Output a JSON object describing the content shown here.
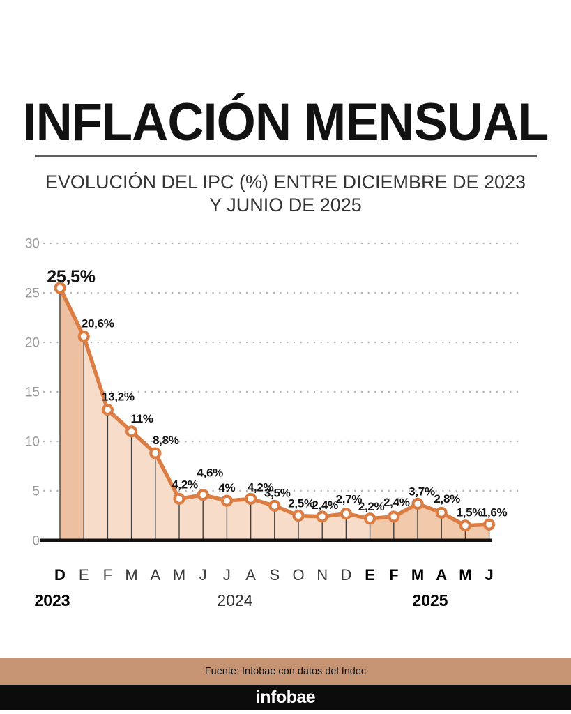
{
  "header": {
    "title": "INFLACIÓN MENSUAL",
    "subtitle_line1": "EVOLUCIÓN DEL IPC (%) ENTRE DICIEMBRE DE 2023",
    "subtitle_line2": "Y JUNIO DE 2025"
  },
  "chart_data": {
    "type": "area",
    "title": "INFLACIÓN MENSUAL",
    "subtitle": "EVOLUCIÓN DEL IPC (%) ENTRE DICIEMBRE DE 2023 Y JUNIO DE 2025",
    "x_months": [
      "D",
      "E",
      "F",
      "M",
      "A",
      "M",
      "J",
      "J",
      "A",
      "S",
      "O",
      "N",
      "D",
      "E",
      "F",
      "M",
      "A",
      "M",
      "J"
    ],
    "bold_month_indices": [
      0,
      13,
      14,
      15,
      16,
      17,
      18
    ],
    "values": [
      25.5,
      20.6,
      13.2,
      11,
      8.8,
      4.2,
      4.6,
      4,
      4.2,
      3.5,
      2.5,
      2.4,
      2.7,
      2.2,
      2.4,
      3.7,
      2.8,
      1.5,
      1.6
    ],
    "point_labels": [
      "25,5%",
      "20,6%",
      "13,2%",
      "11%",
      "8,8%",
      "4,2%",
      "4,6%",
      "4%",
      "4,2%",
      "3,5%",
      "2,5%",
      "2,4%",
      "2,7%",
      "2,2%",
      "2,4%",
      "3,7%",
      "2,8%",
      "1,5%",
      "1,6%"
    ],
    "y_ticks": [
      "0",
      "5",
      "10",
      "15",
      "20",
      "25",
      "30"
    ],
    "ylim": [
      0,
      30
    ],
    "grid": "dotted horizontal rows",
    "legend": "none",
    "year_labels": [
      {
        "label": "2023",
        "bold": true
      },
      {
        "label": "2024",
        "bold": false
      },
      {
        "label": "2025",
        "bold": true
      }
    ],
    "colors": {
      "line": "#dc7e44",
      "marker_fill": "#ffffff",
      "fill_dec2023": "#edc0a2",
      "fill_2024": "#f7dcca",
      "fill_2025": "#f1c9ab",
      "axis_text": "#9c9c9c",
      "grid_dot": "#b3b3b3",
      "drop_line": "#3f3f3f",
      "baseline": "#111111",
      "label_text": "#141414",
      "month_bold": "#000000",
      "month_regular": "#3a3a3a"
    },
    "fill_segments": [
      {
        "from": 0,
        "to": 1,
        "color_key": "fill_dec2023"
      },
      {
        "from": 1,
        "to": 13,
        "color_key": "fill_2024"
      },
      {
        "from": 13,
        "to": 18,
        "color_key": "fill_2025"
      }
    ]
  },
  "footer": {
    "source": "Fuente: Infobae con datos del Indec",
    "brand": "infobae"
  }
}
